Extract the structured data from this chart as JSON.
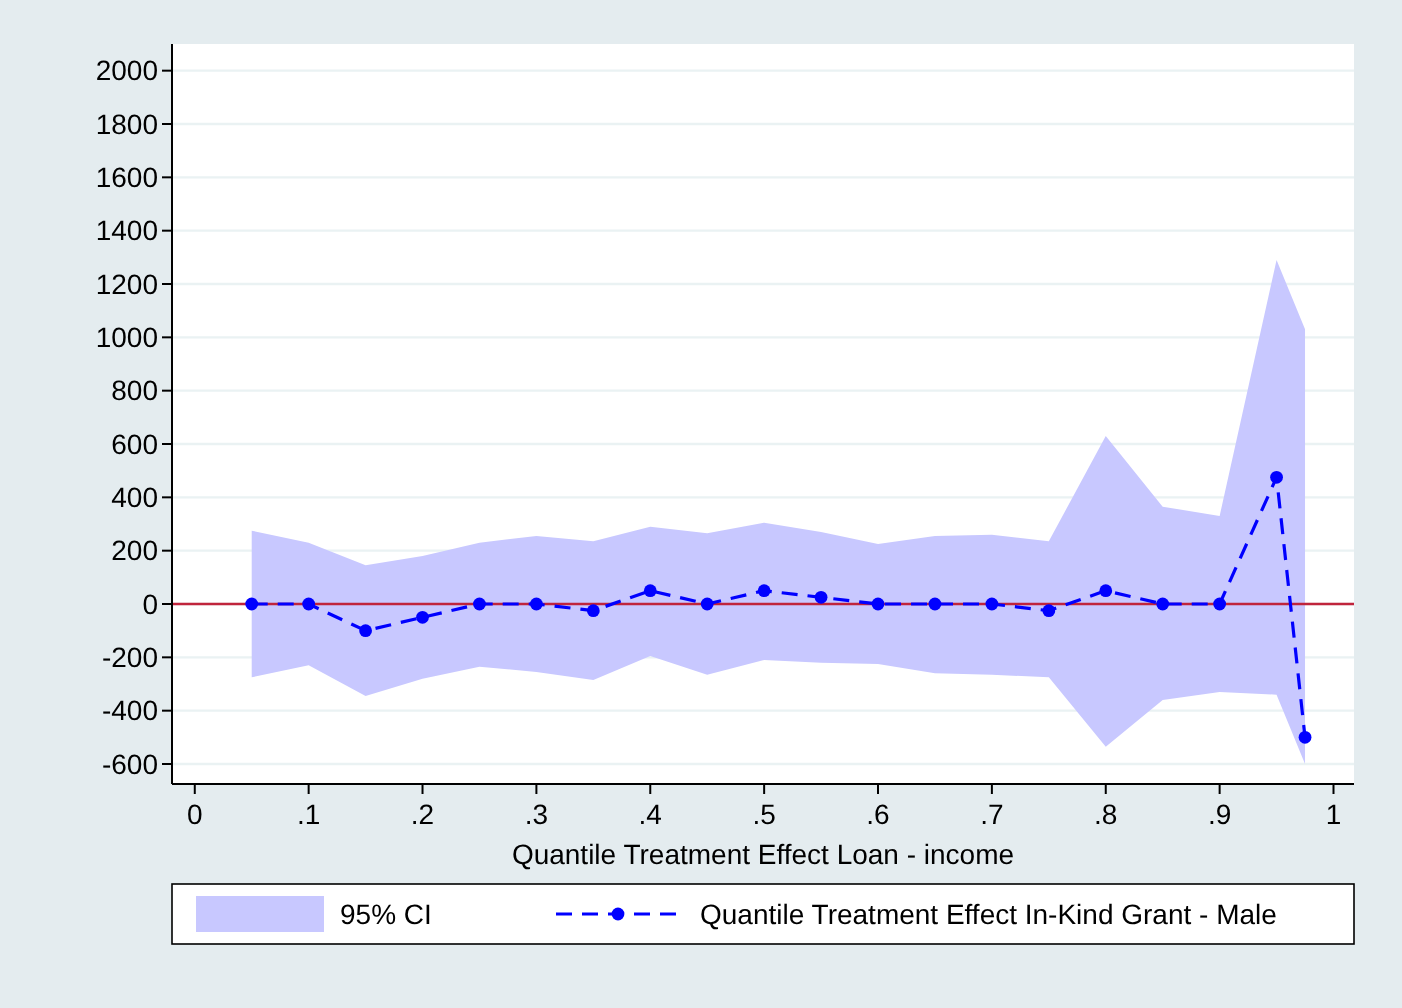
{
  "chart_data": {
    "type": "line",
    "xlabel": "Quantile Treatment Effect Loan - income",
    "x": [
      0.05,
      0.1,
      0.15,
      0.2,
      0.25,
      0.3,
      0.35,
      0.4,
      0.45,
      0.5,
      0.55,
      0.6,
      0.65,
      0.7,
      0.75,
      0.8,
      0.85,
      0.9,
      0.95,
      0.975
    ],
    "series": [
      {
        "name": "Quantile Treatment Effect In-Kind Grant - Male",
        "color": "#0000ff",
        "marker": "circle",
        "line_style": "dashed",
        "values": [
          0,
          0,
          -100,
          -50,
          0,
          0,
          -25,
          50,
          0,
          50,
          25,
          0,
          0,
          0,
          -25,
          50,
          0,
          0,
          475,
          -500
        ],
        "lower": [
          -275,
          -230,
          -345,
          -280,
          -235,
          -255,
          -285,
          -195,
          -265,
          -210,
          -220,
          -225,
          -260,
          -265,
          -275,
          -535,
          -360,
          -330,
          -340,
          -600
        ],
        "upper": [
          275,
          230,
          145,
          180,
          230,
          255,
          235,
          290,
          265,
          305,
          270,
          225,
          255,
          260,
          235,
          630,
          365,
          330,
          1290,
          1030
        ]
      }
    ],
    "annotations": [
      "95% CI"
    ],
    "xlim": [
      -0.02,
      1.018
    ],
    "ylim": [
      -675,
      2100
    ],
    "xticks": [
      0,
      {
        "value": 0.1,
        "label": ".1"
      },
      {
        "value": 0.2,
        "label": ".2"
      },
      {
        "value": 0.3,
        "label": ".3"
      },
      {
        "value": 0.4,
        "label": ".4"
      },
      {
        "value": 0.5,
        "label": ".5"
      },
      {
        "value": 0.6,
        "label": ".6"
      },
      {
        "value": 0.7,
        "label": ".7"
      },
      {
        "value": 0.8,
        "label": ".8"
      },
      {
        "value": 0.9,
        "label": ".9"
      },
      1
    ],
    "yticks": [
      -600,
      -400,
      -200,
      0,
      200,
      400,
      600,
      800,
      1000,
      1200,
      1400,
      1600,
      1800,
      2000
    ],
    "ref_lines": [
      {
        "axis": "y",
        "value": 0,
        "color": "#c0243c"
      }
    ],
    "grid": "y",
    "legend": "bottom"
  }
}
